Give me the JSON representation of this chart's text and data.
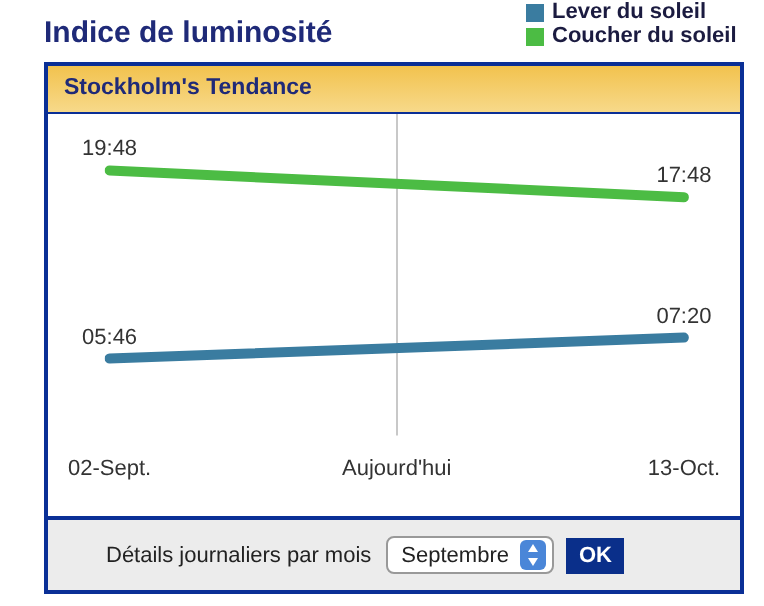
{
  "chart_data": {
    "type": "line",
    "title": "Indice de luminosité",
    "subtitle": "Stockholm's Tendance",
    "categories": [
      "02-Sept.",
      "Aujourd'hui",
      "13-Oct."
    ],
    "series": [
      {
        "name": "Lever du soleil",
        "color": "#3a7ca0",
        "values": [
          5.77,
          null,
          7.33
        ],
        "value_labels": [
          "05:46",
          null,
          "07:20"
        ]
      },
      {
        "name": "Coucher du soleil",
        "color": "#4cbc44",
        "values": [
          19.8,
          null,
          17.8
        ],
        "value_labels": [
          "19:48",
          null,
          "17:48"
        ]
      }
    ],
    "ref_lines": [
      {
        "axis": "x",
        "value": "Aujourd'hui",
        "color": "#c8c8c8"
      }
    ],
    "annotations": [
      "Détails journaliers par mois",
      "Septembre",
      "OK"
    ],
    "legend": "top right",
    "grid": false,
    "marker": "none",
    "tick_labels": "x"
  }
}
